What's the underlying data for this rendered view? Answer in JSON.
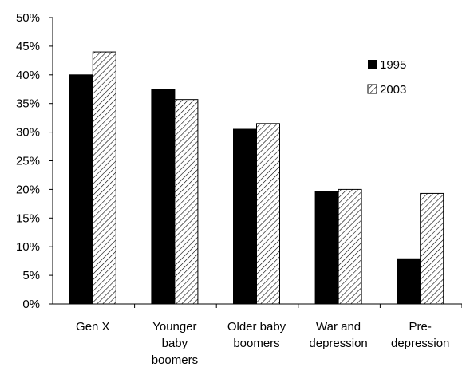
{
  "chart_data": {
    "type": "bar",
    "title": "",
    "xlabel": "",
    "ylabel": "",
    "ylim": [
      0,
      50
    ],
    "y_ticks": [
      "0%",
      "5%",
      "10%",
      "15%",
      "20%",
      "25%",
      "30%",
      "35%",
      "40%",
      "45%",
      "50%"
    ],
    "y_tick_values": [
      0,
      5,
      10,
      15,
      20,
      25,
      30,
      35,
      40,
      45,
      50
    ],
    "categories": [
      [
        "Gen X"
      ],
      [
        "Younger",
        "baby",
        "boomers"
      ],
      [
        "Older baby",
        "boomers"
      ],
      [
        "War and",
        "depression"
      ],
      [
        "Pre-",
        "depression"
      ]
    ],
    "series": [
      {
        "name": "1995",
        "values": [
          40.0,
          37.5,
          30.5,
          19.6,
          7.9
        ],
        "fill": "solid",
        "color": "#000000"
      },
      {
        "name": "2003",
        "values": [
          44.0,
          35.7,
          31.5,
          20.0,
          19.3
        ],
        "fill": "hatched",
        "color": "#000000"
      }
    ],
    "grid": false,
    "legend_position": "top-right"
  }
}
